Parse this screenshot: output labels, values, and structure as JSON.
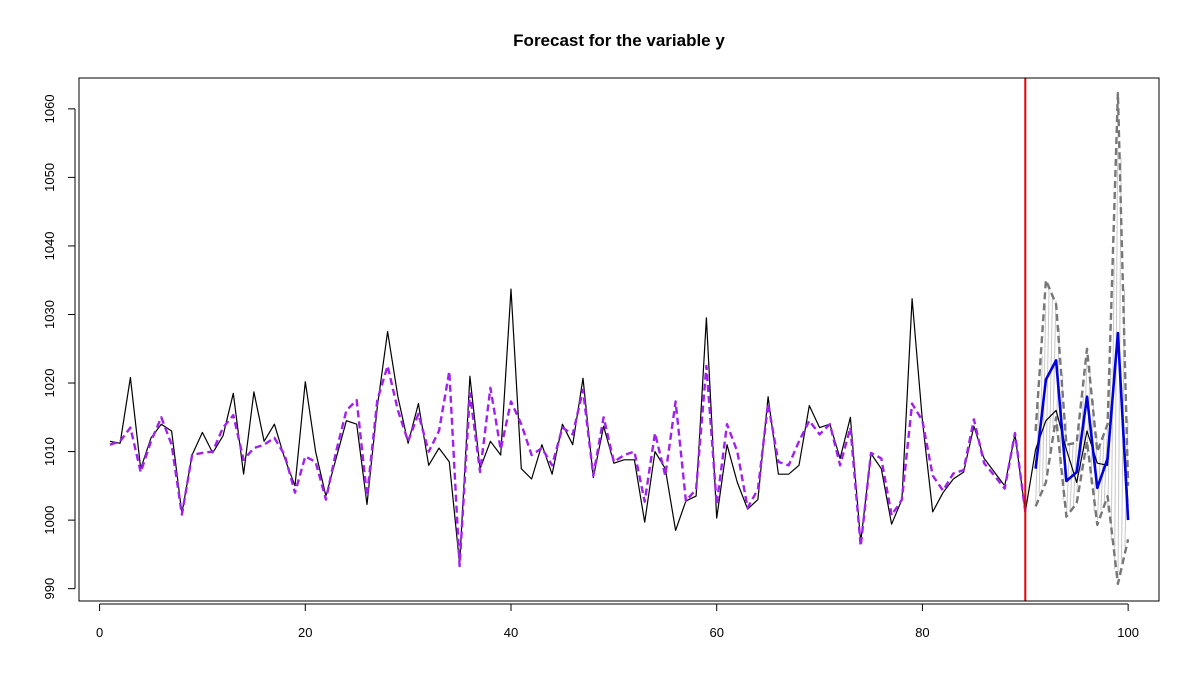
{
  "chart_data": {
    "type": "line",
    "title": "Forecast for the variable y",
    "xlabel": "",
    "ylabel": "",
    "xlim": [
      -2,
      103
    ],
    "ylim": [
      988.2,
      1064.5
    ],
    "x_ticks": [
      0,
      20,
      40,
      60,
      80,
      100
    ],
    "y_ticks": [
      990,
      1000,
      1010,
      1020,
      1030,
      1040,
      1050,
      1060
    ],
    "grid": false,
    "legend": "none",
    "forecast_origin": 90,
    "colors": {
      "actual": "#000000",
      "fitted": "#a020f0",
      "forecast": "#0000dd",
      "interval": "#777777",
      "interval_hatch": "#c8c8c8",
      "origin_line": "#ee0000"
    },
    "series": [
      {
        "key": "actual",
        "style": "solid thin black",
        "x": [
          1,
          2,
          3,
          4,
          5,
          6,
          7,
          8,
          9,
          10,
          11,
          12,
          13,
          14,
          15,
          16,
          17,
          18,
          19,
          20,
          21,
          22,
          23,
          24,
          25,
          26,
          27,
          28,
          29,
          30,
          31,
          32,
          33,
          34,
          35,
          36,
          37,
          38,
          39,
          40,
          41,
          42,
          43,
          44,
          45,
          46,
          47,
          48,
          49,
          50,
          51,
          52,
          53,
          54,
          55,
          56,
          57,
          58,
          59,
          60,
          61,
          62,
          63,
          64,
          65,
          66,
          67,
          68,
          69,
          70,
          71,
          72,
          73,
          74,
          75,
          76,
          77,
          78,
          79,
          80,
          81,
          82,
          83,
          84,
          85,
          86,
          87,
          88,
          89,
          90,
          91,
          92,
          93,
          94,
          95,
          96,
          97,
          98,
          99,
          100
        ],
        "values": [
          1011.5,
          1011.2,
          1020.8,
          1007.5,
          1012.0,
          1014.0,
          1013.0,
          1001.0,
          1009.5,
          1012.8,
          1009.8,
          1012.3,
          1018.5,
          1006.7,
          1018.7,
          1011.5,
          1014.0,
          1009.0,
          1005.0,
          1020.2,
          1010.0,
          1003.5,
          1009.0,
          1014.5,
          1014.0,
          1002.3,
          1016.5,
          1027.5,
          1018.0,
          1011.2,
          1017.0,
          1008.0,
          1010.5,
          1008.5,
          993.6,
          1021.0,
          1007.5,
          1011.5,
          1009.5,
          1033.7,
          1007.5,
          1006.0,
          1011.0,
          1006.7,
          1014.0,
          1011.0,
          1020.7,
          1006.2,
          1013.7,
          1008.3,
          1008.8,
          1008.8,
          999.7,
          1010.0,
          1007.5,
          998.5,
          1002.8,
          1003.5,
          1029.5,
          1000.3,
          1011.0,
          1005.5,
          1001.6,
          1003.0,
          1018.0,
          1006.7,
          1006.7,
          1008.0,
          1016.7,
          1013.5,
          1014.0,
          1009.0,
          1015.0,
          996.8,
          1009.7,
          1007.5,
          999.4,
          1003.0,
          1032.3,
          1014.5,
          1001.2,
          1004.0,
          1006.0,
          1007.0,
          1013.7,
          1009.0,
          1007.0,
          1005.0,
          1012.5,
          1001.2,
          1010.3,
          1014.5,
          1016.0,
          1010.3,
          1005.5,
          1013.0,
          1008.3,
          1008.0,
          1027.3,
          1002.0
        ]
      },
      {
        "key": "fitted",
        "style": "dashed purple",
        "x": [
          1,
          2,
          3,
          4,
          5,
          6,
          7,
          8,
          9,
          10,
          11,
          12,
          13,
          14,
          15,
          16,
          17,
          18,
          19,
          20,
          21,
          22,
          23,
          24,
          25,
          26,
          27,
          28,
          29,
          30,
          31,
          32,
          33,
          34,
          35,
          36,
          37,
          38,
          39,
          40,
          41,
          42,
          43,
          44,
          45,
          46,
          47,
          48,
          49,
          50,
          51,
          52,
          53,
          54,
          55,
          56,
          57,
          58,
          59,
          60,
          61,
          62,
          63,
          64,
          65,
          66,
          67,
          68,
          69,
          70,
          71,
          72,
          73,
          74,
          75,
          76,
          77,
          78,
          79,
          80,
          81,
          82,
          83,
          84,
          85,
          86,
          87,
          88,
          89,
          90
        ],
        "values": [
          1011.0,
          1011.5,
          1013.5,
          1007.0,
          1011.5,
          1015.0,
          1011.0,
          1000.8,
          1009.5,
          1009.8,
          1010.0,
          1013.5,
          1015.3,
          1008.8,
          1010.5,
          1011.0,
          1012.0,
          1009.5,
          1004.0,
          1009.3,
          1008.5,
          1003.0,
          1010.0,
          1016.0,
          1017.5,
          1003.5,
          1017.5,
          1022.5,
          1016.0,
          1011.5,
          1015.5,
          1010.0,
          1013.0,
          1021.7,
          993.3,
          1018.5,
          1007.0,
          1019.3,
          1010.3,
          1017.3,
          1014.0,
          1009.5,
          1010.5,
          1008.0,
          1013.5,
          1012.5,
          1019.0,
          1006.5,
          1015.0,
          1008.5,
          1009.5,
          1010.0,
          1002.7,
          1012.7,
          1006.5,
          1017.3,
          1002.8,
          1004.5,
          1022.5,
          1002.3,
          1014.0,
          1010.0,
          1001.8,
          1004.5,
          1017.0,
          1008.5,
          1008.0,
          1011.5,
          1014.5,
          1012.5,
          1014.0,
          1008.0,
          1013.5,
          996.2,
          1009.8,
          1009.0,
          1000.7,
          1003.0,
          1017.0,
          1014.5,
          1006.5,
          1004.3,
          1006.8,
          1007.3,
          1014.7,
          1008.3,
          1006.5,
          1004.6,
          1012.7,
          1001.2
        ]
      },
      {
        "key": "forecast",
        "style": "solid thick blue",
        "x": [
          91,
          92,
          93,
          94,
          95,
          96,
          97,
          98,
          99,
          100
        ],
        "values": [
          1007.5,
          1020.5,
          1023.3,
          1005.7,
          1007.0,
          1018.0,
          1004.7,
          1009.0,
          1027.3,
          1000.0
        ]
      },
      {
        "key": "upper",
        "style": "dashed gray",
        "x": [
          91,
          92,
          93,
          94,
          95,
          96,
          97,
          98,
          99,
          100
        ],
        "values": [
          1013.0,
          1035.0,
          1031.5,
          1011.0,
          1011.3,
          1025.0,
          1010.0,
          1014.0,
          1062.3,
          1005.0
        ]
      },
      {
        "key": "lower",
        "style": "dashed gray",
        "x": [
          91,
          92,
          93,
          94,
          95,
          96,
          97,
          98,
          99,
          100
        ],
        "values": [
          1002.0,
          1005.5,
          1015.0,
          1000.5,
          1002.5,
          1011.5,
          999.3,
          1003.5,
          990.7,
          997.2
        ]
      }
    ]
  }
}
